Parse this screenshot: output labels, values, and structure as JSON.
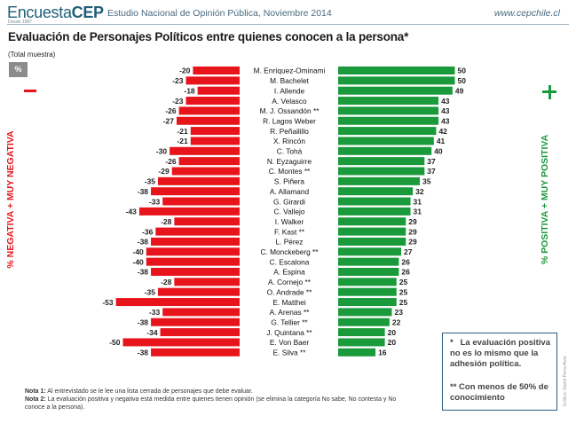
{
  "header": {
    "brand_light": "Encuesta",
    "brand_bold": "CEP",
    "brand_tagline": "Desde 1987",
    "study": "Estudio Nacional de Opinión Pública, Noviembre 2014",
    "url": "www.cepchile.cl"
  },
  "badge": "%",
  "axis_labels": {
    "negative": "% NEGATIVA + MUY NEGATIVA",
    "positive": "% POSITIVA + MUY POSITIVA"
  },
  "notes_box": {
    "note1_marker": "*",
    "note1_text": "La evaluación positiva no es lo mismo que la adhesión política.",
    "note2_marker": "**",
    "note2_text": "Con menos de 50% de conocimiento"
  },
  "footnotes": {
    "nota1_label": "Nota 1:",
    "nota1_text": "Al entrevistado se le lee una lista cerrada de personajes que debe evaluar.",
    "nota2_label": "Nota 2:",
    "nota2_text": "La evaluación positiva y negativa está medida entre quienes tienen opinión (se elimina la categoría No sabe, No contesta y No conoce a la persona)."
  },
  "credit": "Gráfica: David Parra Alvis",
  "colors": {
    "negative": "#e8141b",
    "positive": "#1a9a3b"
  },
  "chart_data": {
    "type": "bar",
    "title": "Evaluación de Personajes Políticos entre quienes conocen a la persona*",
    "subtitle": "(Total muestra)",
    "categories": [
      "M. Enríquez-Ominami",
      "M. Bachelet",
      "I. Allende",
      "A. Velasco",
      "M. J. Ossandón **",
      "R. Lagos Weber",
      "R. Peñailillo",
      "X. Rincón",
      "C. Tohá",
      "N. Eyzaguirre",
      "C. Montes **",
      "S. Piñera",
      "A. Allamand",
      "G. Girardi",
      "C. Vallejo",
      "I. Walker",
      "F. Kast **",
      "L. Pérez",
      "C. Monckeberg **",
      "C. Escalona",
      "A. Espina",
      "A. Cornejo **",
      "O. Andrade **",
      "E. Matthei",
      "A. Arenas **",
      "G. Tellier **",
      "J. Quintana **",
      "E. Von Baer",
      "E. Silva **"
    ],
    "series": [
      {
        "name": "% Negativa + Muy negativa",
        "values": [
          -20,
          -23,
          -18,
          -23,
          -26,
          -27,
          -21,
          -21,
          -30,
          -26,
          -29,
          -35,
          -38,
          -33,
          -43,
          -28,
          -36,
          -38,
          -40,
          -40,
          -38,
          -28,
          -35,
          -53,
          -33,
          -38,
          -34,
          -50,
          -38
        ]
      },
      {
        "name": "% Positiva + Muy positiva",
        "values": [
          50,
          50,
          49,
          43,
          43,
          43,
          42,
          41,
          40,
          37,
          37,
          35,
          32,
          31,
          31,
          29,
          29,
          29,
          27,
          26,
          26,
          25,
          25,
          25,
          23,
          22,
          20,
          20,
          16
        ]
      }
    ]
  }
}
